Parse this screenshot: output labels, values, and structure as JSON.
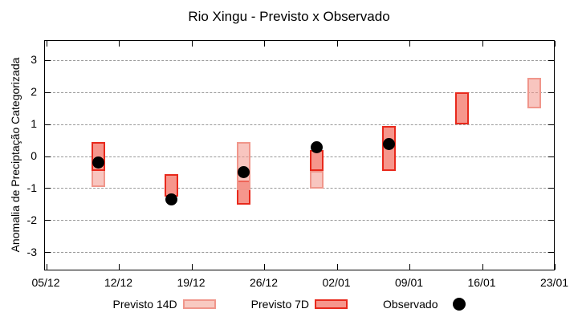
{
  "title": "Rio Xingu - Previsto x Observado",
  "axes": {
    "y_label": "Anomalia de Preciptação Categorizada"
  },
  "legend": {
    "items": [
      {
        "label": "Previsto 14D",
        "series": "previsto_14d",
        "swatch": "light-pink-box"
      },
      {
        "label": "Previsto 7D",
        "series": "previsto_7d",
        "swatch": "red-box"
      },
      {
        "label": "Observado",
        "series": "observado",
        "swatch": "black-dot"
      }
    ]
  },
  "colors": {
    "previsto_14d_fill": "#f8c9c1",
    "previsto_14d_fill_rgba": "rgba(242,150,138,0.55)",
    "previsto_14d_border": "#f0968b",
    "previsto_7d_fill": "#f6968c",
    "previsto_7d_border": "#e8291c",
    "observado": "#000000",
    "grid": "#999999",
    "frame": "#000000"
  },
  "chart_data": {
    "type": "bar",
    "subtype": "forecast-range-bars-with-observed-points",
    "title": "Rio Xingu - Previsto x Observado",
    "xlabel": "",
    "ylabel": "Anomalia de Preciptação Categorizada",
    "ylim": [
      -3.6,
      3.6
    ],
    "y_ticks": [
      3,
      2,
      1,
      0,
      -1,
      -2,
      -3
    ],
    "x_ticks": [
      "05/12",
      "12/12",
      "19/12",
      "26/12",
      "02/01",
      "09/01",
      "16/01",
      "23/01"
    ],
    "x_tick_interval_days": 7,
    "grid": "horizontal dotted gray lines at integer y values",
    "legend_position": "bottom outside plot",
    "points": [
      {
        "date": "10/12",
        "day_offset": 5,
        "previsto_14d": [
          -0.95,
          0.45
        ],
        "previsto_7d": [
          -0.45,
          0.45
        ],
        "observado": -0.2,
        "front": "p7"
      },
      {
        "date": "17/12",
        "day_offset": 12,
        "previsto_14d": null,
        "previsto_7d": [
          -1.25,
          -0.55
        ],
        "observado": -1.35,
        "front": "p7"
      },
      {
        "date": "24/12",
        "day_offset": 19,
        "previsto_14d": [
          -1.05,
          0.45
        ],
        "previsto_7d": [
          -1.5,
          -0.75
        ],
        "observado": -0.5,
        "front": "p14"
      },
      {
        "date": "31/12",
        "day_offset": 26,
        "previsto_14d": [
          -1.0,
          -0.45
        ],
        "previsto_7d": [
          -0.45,
          0.2
        ],
        "observado": 0.3,
        "front": "p7"
      },
      {
        "date": "07/01",
        "day_offset": 33,
        "previsto_14d": null,
        "previsto_7d": [
          -0.45,
          0.95
        ],
        "observado": 0.4,
        "front": "p7"
      },
      {
        "date": "14/01",
        "day_offset": 40,
        "previsto_14d": null,
        "previsto_7d": [
          1.0,
          2.0
        ],
        "observado": null,
        "front": "p7"
      },
      {
        "date": "21/01",
        "day_offset": 47,
        "previsto_14d": [
          1.5,
          2.45
        ],
        "previsto_7d": null,
        "observado": null,
        "front": "p14"
      }
    ]
  }
}
